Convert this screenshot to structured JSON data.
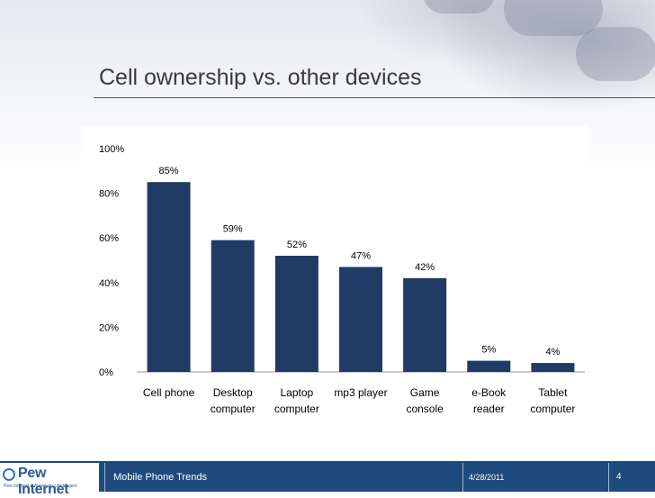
{
  "slide": {
    "title": "Cell ownership vs. other devices",
    "footer_left": "Mobile Phone Trends",
    "footer_date": "4/28/2011",
    "page_number": "4",
    "logo_text": "Pew Internet",
    "logo_subtext": "Pew Internet & American Life Project"
  },
  "colors": {
    "bar": "#1f3b66",
    "footer": "#1f4a7d"
  },
  "chart_data": {
    "type": "bar",
    "categories": [
      [
        "Cell phone"
      ],
      [
        "Desktop",
        "computer"
      ],
      [
        "Laptop",
        "computer"
      ],
      [
        "mp3 player"
      ],
      [
        "Game",
        "console"
      ],
      [
        "e-Book",
        "reader"
      ],
      [
        "Tablet",
        "computer"
      ]
    ],
    "values": [
      85,
      59,
      52,
      47,
      42,
      5,
      4
    ],
    "data_labels": [
      "85%",
      "59%",
      "52%",
      "47%",
      "42%",
      "5%",
      "4%"
    ],
    "y_ticks": [
      "0%",
      "20%",
      "40%",
      "60%",
      "80%",
      "100%"
    ],
    "ylim": [
      0,
      100
    ],
    "grid": false,
    "title": "",
    "xlabel": "",
    "ylabel": ""
  }
}
